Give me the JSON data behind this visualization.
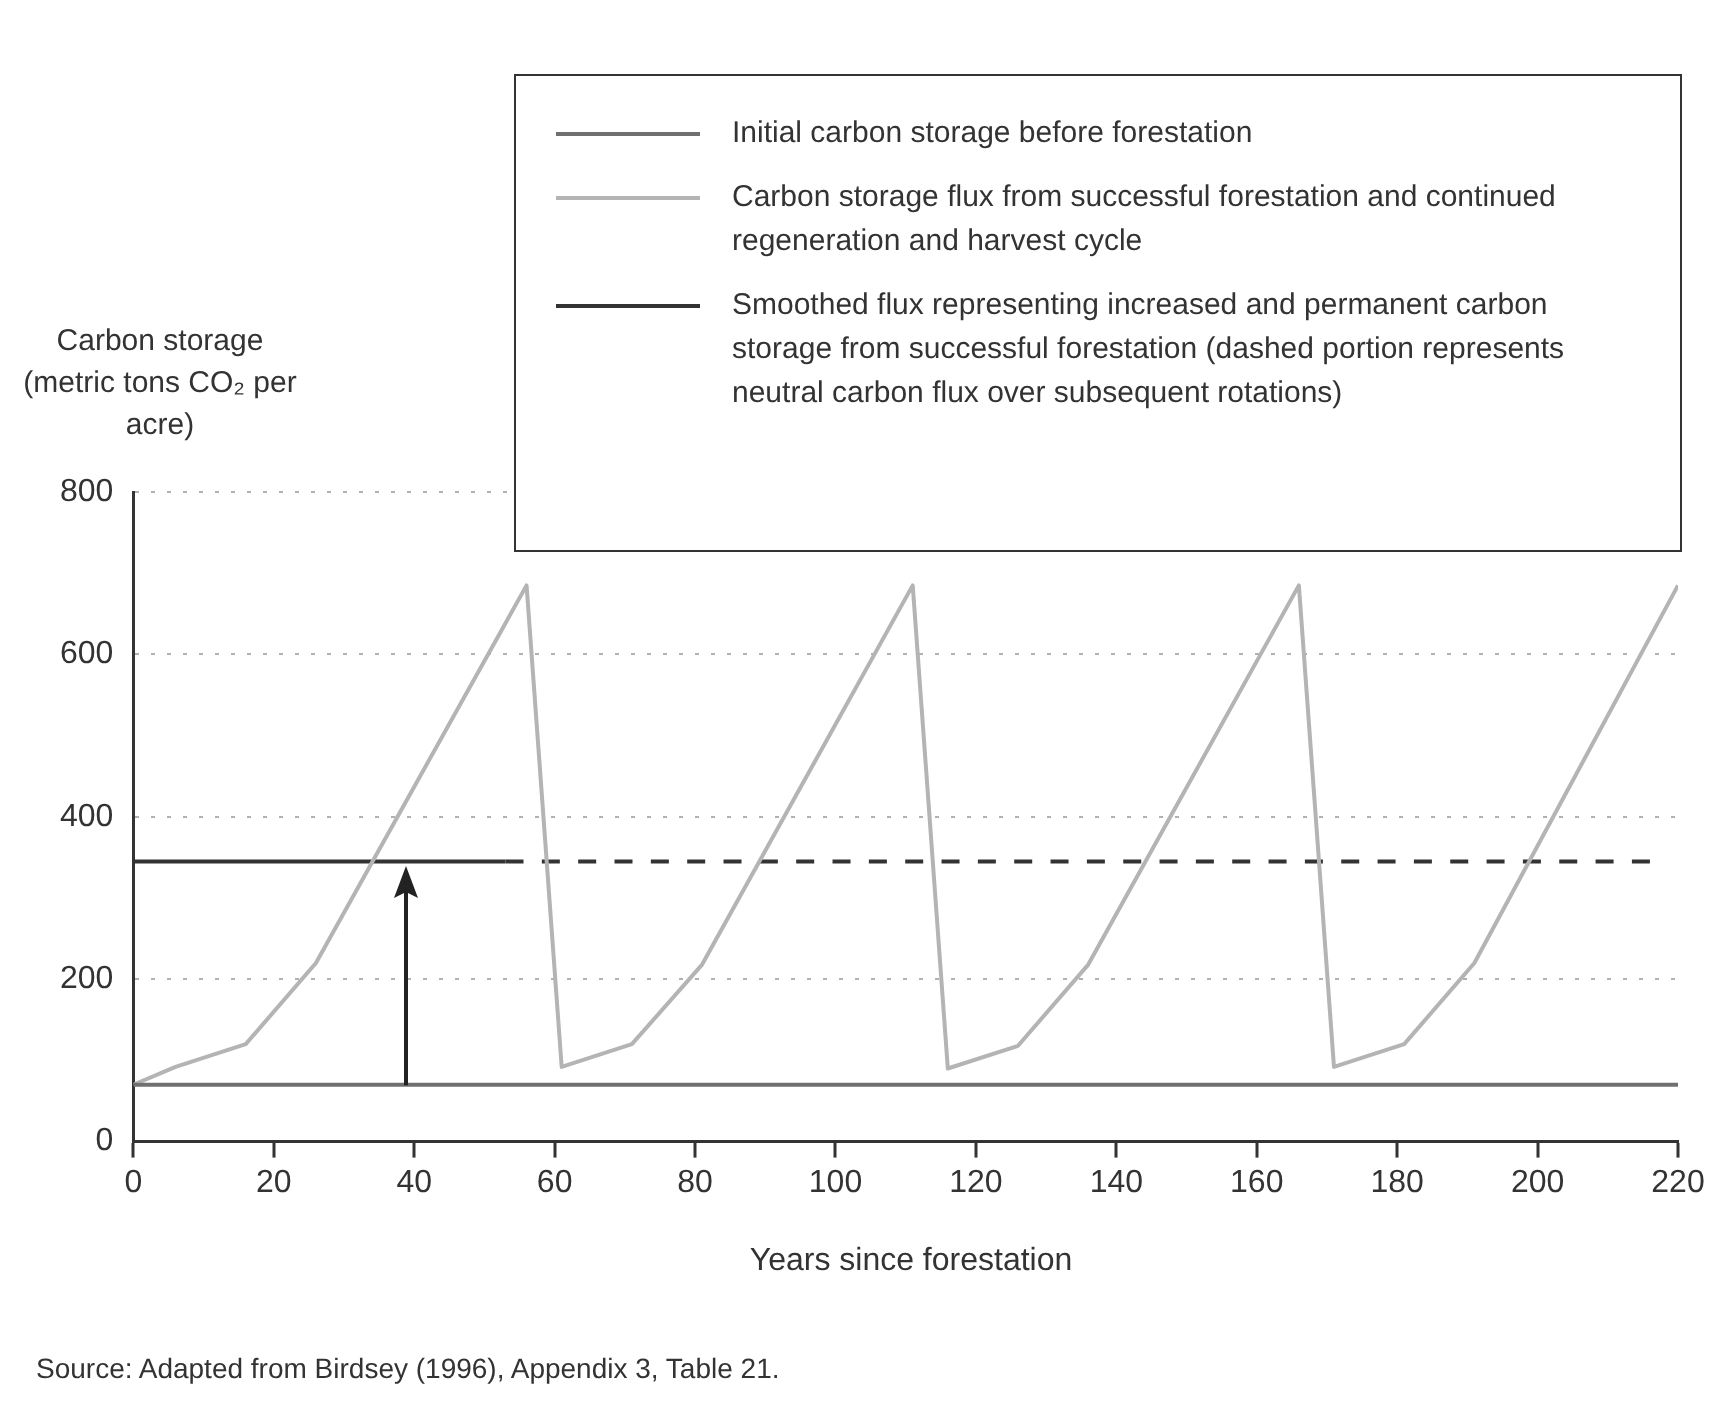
{
  "chart_data": {
    "type": "line",
    "xlabel": "Years since forestation",
    "ylabel": "Carbon storage (metric tons CO₂ per acre)",
    "xlim": [
      0,
      220
    ],
    "xticks": [
      0,
      20,
      40,
      60,
      80,
      100,
      120,
      140,
      160,
      180,
      200,
      220
    ],
    "ylim": [
      0,
      800
    ],
    "yticks": [
      0,
      200,
      400,
      600,
      800
    ],
    "grid": "y",
    "legend": "top right",
    "marker": "none",
    "series": [
      {
        "name": "Initial carbon storage before forestation",
        "color": "#707070",
        "line_style": "solid",
        "x": [
          0,
          220
        ],
        "values": [
          70,
          70
        ]
      },
      {
        "name": "Carbon storage flux from successful forestation and continued regeneration and harvest cycle",
        "color": "#b4b4b4",
        "line_style": "solid",
        "x": [
          0,
          6,
          16,
          26,
          56,
          61,
          71,
          81,
          111,
          116,
          126,
          136,
          166,
          171,
          181,
          191,
          220
        ],
        "values": [
          70,
          92,
          120,
          220,
          685,
          92,
          120,
          218,
          685,
          90,
          118,
          218,
          685,
          92,
          120,
          220,
          685
        ]
      },
      {
        "name": "Smoothed flux representing increased and permanent carbon storage from successful forestation (dashed portion represents neutral carbon flux over subsequent rotations)",
        "color": "#333333",
        "line_style": "solid",
        "x": [
          0,
          53
        ],
        "values": [
          345,
          345
        ]
      },
      {
        "color": "#333333",
        "line_style": "dashed",
        "x": [
          53,
          216
        ],
        "values": [
          345,
          345
        ]
      }
    ],
    "annotations": [
      "Source: Adapted from Birdsey (1996), Appendix 3, Table 21."
    ]
  }
}
